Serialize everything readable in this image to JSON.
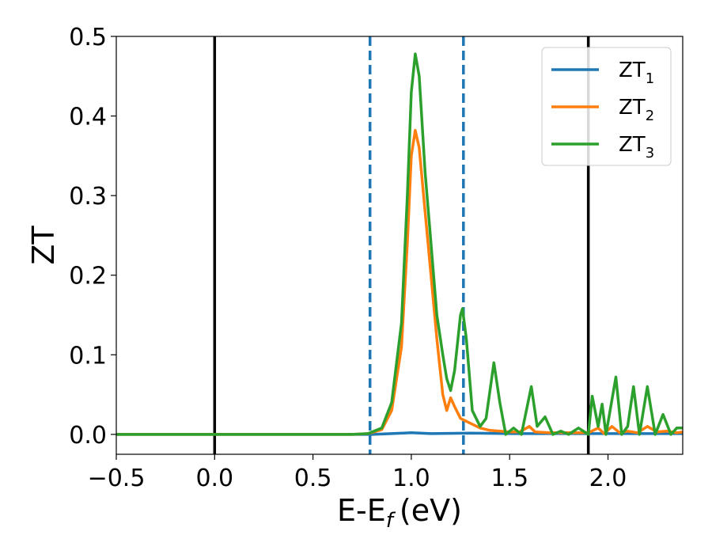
{
  "chart_data": {
    "type": "line",
    "title": "",
    "xlabel": "E-E",
    "xlabel_subscript": "f",
    "xlabel_unit": "(eV)",
    "ylabel": "ZT",
    "xlim": [
      -0.5,
      2.38
    ],
    "ylim": [
      -0.025,
      0.5
    ],
    "xticks": [
      -0.5,
      0.0,
      0.5,
      1.0,
      1.5,
      2.0
    ],
    "xtick_labels": [
      "−0.5",
      "0.0",
      "0.5",
      "1.0",
      "1.5",
      "2.0"
    ],
    "yticks": [
      0.0,
      0.1,
      0.2,
      0.3,
      0.4,
      0.5
    ],
    "ytick_labels": [
      "0.0",
      "0.1",
      "0.2",
      "0.3",
      "0.4",
      "0.5"
    ],
    "grid": false,
    "legend_position": "top-right",
    "vlines": [
      {
        "x": 0.0,
        "style": "solid",
        "color": "#000000"
      },
      {
        "x": 1.9,
        "style": "solid",
        "color": "#000000"
      },
      {
        "x": 0.79,
        "style": "dashed",
        "color": "#1f77b4"
      },
      {
        "x": 1.265,
        "style": "dashed",
        "color": "#1f77b4"
      }
    ],
    "series": [
      {
        "name": "ZT",
        "sub": "1",
        "color": "#1f77b4",
        "points": [
          [
            -0.5,
            0.0
          ],
          [
            0.6,
            0.0
          ],
          [
            0.8,
            0.0
          ],
          [
            0.9,
            0.001
          ],
          [
            1.0,
            0.002
          ],
          [
            1.1,
            0.001
          ],
          [
            1.3,
            0.0015
          ],
          [
            1.5,
            0.001
          ],
          [
            1.9,
            0.001
          ],
          [
            2.2,
            0.001
          ],
          [
            2.38,
            0.001
          ]
        ]
      },
      {
        "name": "ZT",
        "sub": "2",
        "color": "#ff7f0e",
        "points": [
          [
            -0.5,
            0.0
          ],
          [
            0.7,
            0.0
          ],
          [
            0.78,
            0.001
          ],
          [
            0.85,
            0.006
          ],
          [
            0.9,
            0.03
          ],
          [
            0.95,
            0.11
          ],
          [
            0.98,
            0.24
          ],
          [
            1.0,
            0.35
          ],
          [
            1.02,
            0.382
          ],
          [
            1.04,
            0.36
          ],
          [
            1.07,
            0.28
          ],
          [
            1.1,
            0.2
          ],
          [
            1.13,
            0.12
          ],
          [
            1.16,
            0.05
          ],
          [
            1.18,
            0.03
          ],
          [
            1.2,
            0.046
          ],
          [
            1.22,
            0.035
          ],
          [
            1.25,
            0.02
          ],
          [
            1.3,
            0.014
          ],
          [
            1.35,
            0.008
          ],
          [
            1.4,
            0.005
          ],
          [
            1.45,
            0.004
          ],
          [
            1.5,
            0.003
          ],
          [
            1.55,
            0.003
          ],
          [
            1.6,
            0.01
          ],
          [
            1.63,
            0.003
          ],
          [
            1.7,
            0.002
          ],
          [
            1.8,
            0.002
          ],
          [
            1.9,
            0.002
          ],
          [
            1.95,
            0.008
          ],
          [
            1.98,
            0.001
          ],
          [
            2.02,
            0.01
          ],
          [
            2.06,
            0.002
          ],
          [
            2.1,
            0.004
          ],
          [
            2.15,
            0.002
          ],
          [
            2.2,
            0.01
          ],
          [
            2.25,
            0.003
          ],
          [
            2.3,
            0.004
          ],
          [
            2.35,
            0.002
          ],
          [
            2.38,
            0.003
          ]
        ]
      },
      {
        "name": "ZT",
        "sub": "3",
        "color": "#2ca02c",
        "points": [
          [
            -0.5,
            0.0
          ],
          [
            0.7,
            0.0
          ],
          [
            0.78,
            0.001
          ],
          [
            0.85,
            0.008
          ],
          [
            0.9,
            0.04
          ],
          [
            0.95,
            0.14
          ],
          [
            0.98,
            0.3
          ],
          [
            1.0,
            0.43
          ],
          [
            1.02,
            0.478
          ],
          [
            1.04,
            0.45
          ],
          [
            1.07,
            0.33
          ],
          [
            1.1,
            0.24
          ],
          [
            1.13,
            0.15
          ],
          [
            1.16,
            0.1
          ],
          [
            1.18,
            0.07
          ],
          [
            1.2,
            0.055
          ],
          [
            1.22,
            0.08
          ],
          [
            1.25,
            0.15
          ],
          [
            1.26,
            0.158
          ],
          [
            1.28,
            0.12
          ],
          [
            1.31,
            0.03
          ],
          [
            1.35,
            0.01
          ],
          [
            1.38,
            0.02
          ],
          [
            1.42,
            0.09
          ],
          [
            1.45,
            0.04
          ],
          [
            1.48,
            0.0
          ],
          [
            1.52,
            0.008
          ],
          [
            1.56,
            0.0
          ],
          [
            1.61,
            0.06
          ],
          [
            1.64,
            0.01
          ],
          [
            1.68,
            0.022
          ],
          [
            1.72,
            0.0
          ],
          [
            1.76,
            0.004
          ],
          [
            1.8,
            0.0
          ],
          [
            1.85,
            0.008
          ],
          [
            1.9,
            0.0
          ],
          [
            1.92,
            0.048
          ],
          [
            1.95,
            0.01
          ],
          [
            1.97,
            0.038
          ],
          [
            1.99,
            0.0
          ],
          [
            2.04,
            0.072
          ],
          [
            2.07,
            0.0
          ],
          [
            2.1,
            0.01
          ],
          [
            2.13,
            0.06
          ],
          [
            2.16,
            0.0
          ],
          [
            2.2,
            0.06
          ],
          [
            2.24,
            0.0
          ],
          [
            2.28,
            0.025
          ],
          [
            2.32,
            0.0
          ],
          [
            2.35,
            0.008
          ],
          [
            2.38,
            0.008
          ]
        ]
      }
    ]
  }
}
